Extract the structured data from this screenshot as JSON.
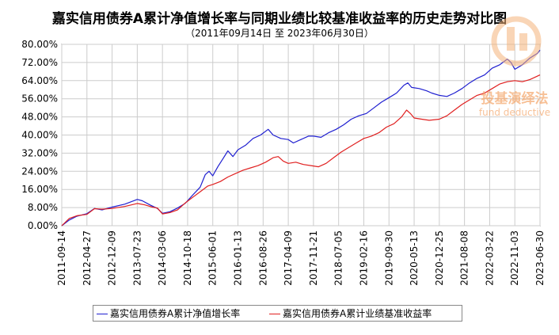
{
  "title": "嘉实信用债券A累计净值增长率与同期业绩比较基准收益率的历史走势对比图",
  "subtitle": "（2011年09月14日 至 2023年06月30日）",
  "watermark": {
    "cn": "投基演绎法",
    "en": "fund deductive"
  },
  "chart_data": {
    "type": "line",
    "x_ticks": [
      "2011-09-14",
      "2012-04-27",
      "2012-12-09",
      "2013-07-23",
      "2014-03-06",
      "2014-10-18",
      "2015-06-01",
      "2016-01-13",
      "2016-08-26",
      "2017-04-09",
      "2017-11-21",
      "2018-07-05",
      "2019-02-16",
      "2019-09-30",
      "2020-05-13",
      "2020-12-25",
      "2021-08-08",
      "2022-03-22",
      "2022-11-03",
      "2023-06-30"
    ],
    "y_ticks": [
      "0.00%",
      "8.00%",
      "16.00%",
      "24.00%",
      "32.00%",
      "40.00%",
      "48.00%",
      "56.00%",
      "64.00%",
      "72.00%",
      "80.00%"
    ],
    "ylim": [
      0,
      80
    ],
    "grid": true,
    "legend_position": "bottom",
    "series": [
      {
        "name": "嘉实信用债券A累计净值增长率",
        "color": "#1f1fd0",
        "points": [
          [
            0,
            0
          ],
          [
            0.3,
            2.5
          ],
          [
            0.6,
            4.2
          ],
          [
            1,
            5.3
          ],
          [
            1.3,
            7.6
          ],
          [
            1.6,
            7.0
          ],
          [
            2,
            8.2
          ],
          [
            2.5,
            9.5
          ],
          [
            3,
            11.6
          ],
          [
            3.2,
            11.0
          ],
          [
            3.5,
            9.2
          ],
          [
            3.8,
            7.6
          ],
          [
            4,
            5.5
          ],
          [
            4.3,
            6.2
          ],
          [
            4.6,
            7.8
          ],
          [
            4.9,
            9.8
          ],
          [
            5.2,
            13.5
          ],
          [
            5.5,
            17.0
          ],
          [
            5.7,
            22.5
          ],
          [
            5.85,
            24.0
          ],
          [
            6,
            22.0
          ],
          [
            6.2,
            26.0
          ],
          [
            6.4,
            29.5
          ],
          [
            6.6,
            33.0
          ],
          [
            6.8,
            30.5
          ],
          [
            7,
            33.5
          ],
          [
            7.3,
            35.5
          ],
          [
            7.6,
            38.5
          ],
          [
            7.9,
            40.0
          ],
          [
            8.2,
            42.5
          ],
          [
            8.4,
            40.0
          ],
          [
            8.7,
            38.5
          ],
          [
            9,
            38.0
          ],
          [
            9.2,
            36.5
          ],
          [
            9.5,
            38.0
          ],
          [
            9.8,
            39.5
          ],
          [
            10,
            39.5
          ],
          [
            10.3,
            39.0
          ],
          [
            10.6,
            41.0
          ],
          [
            10.9,
            42.5
          ],
          [
            11.2,
            44.5
          ],
          [
            11.5,
            47.0
          ],
          [
            11.8,
            48.5
          ],
          [
            12.1,
            49.5
          ],
          [
            12.4,
            52.0
          ],
          [
            12.7,
            54.5
          ],
          [
            13,
            56.5
          ],
          [
            13.3,
            58.5
          ],
          [
            13.6,
            62.0
          ],
          [
            13.75,
            63.0
          ],
          [
            13.9,
            61.0
          ],
          [
            14.2,
            60.5
          ],
          [
            14.5,
            59.5
          ],
          [
            14.7,
            58.5
          ],
          [
            15,
            57.5
          ],
          [
            15.3,
            57.0
          ],
          [
            15.6,
            58.5
          ],
          [
            15.9,
            60.5
          ],
          [
            16.2,
            63.0
          ],
          [
            16.5,
            65.0
          ],
          [
            16.8,
            66.5
          ],
          [
            17.1,
            69.5
          ],
          [
            17.4,
            71.0
          ],
          [
            17.7,
            73.5
          ],
          [
            17.85,
            72.0
          ],
          [
            18,
            69.0
          ],
          [
            18.3,
            71.0
          ],
          [
            18.6,
            74.0
          ],
          [
            18.9,
            76.0
          ],
          [
            19,
            77.5
          ]
        ]
      },
      {
        "name": "嘉实信用债券A累计业绩基准收益率",
        "color": "#e02020",
        "points": [
          [
            0,
            0
          ],
          [
            0.3,
            3.2
          ],
          [
            0.6,
            4.4
          ],
          [
            1,
            5.0
          ],
          [
            1.3,
            7.5
          ],
          [
            1.6,
            7.3
          ],
          [
            2,
            7.6
          ],
          [
            2.5,
            8.5
          ],
          [
            3,
            9.8
          ],
          [
            3.3,
            9.2
          ],
          [
            3.6,
            8.2
          ],
          [
            3.8,
            7.8
          ],
          [
            4,
            5.2
          ],
          [
            4.3,
            5.8
          ],
          [
            4.6,
            7.0
          ],
          [
            4.9,
            10.0
          ],
          [
            5.2,
            12.5
          ],
          [
            5.5,
            15.0
          ],
          [
            5.8,
            17.5
          ],
          [
            6,
            18.2
          ],
          [
            6.3,
            19.5
          ],
          [
            6.6,
            21.5
          ],
          [
            6.9,
            23.0
          ],
          [
            7.2,
            24.5
          ],
          [
            7.5,
            25.5
          ],
          [
            7.8,
            26.5
          ],
          [
            8.1,
            28.0
          ],
          [
            8.4,
            30.0
          ],
          [
            8.6,
            30.5
          ],
          [
            8.8,
            28.5
          ],
          [
            9,
            27.5
          ],
          [
            9.3,
            28.0
          ],
          [
            9.6,
            27.0
          ],
          [
            9.9,
            26.5
          ],
          [
            10.2,
            26.0
          ],
          [
            10.5,
            27.5
          ],
          [
            10.8,
            30.0
          ],
          [
            11.1,
            32.5
          ],
          [
            11.4,
            34.5
          ],
          [
            11.7,
            36.5
          ],
          [
            12,
            38.5
          ],
          [
            12.3,
            39.5
          ],
          [
            12.6,
            41.0
          ],
          [
            12.9,
            43.5
          ],
          [
            13.2,
            45.0
          ],
          [
            13.5,
            48.0
          ],
          [
            13.7,
            51.0
          ],
          [
            13.85,
            49.5
          ],
          [
            14,
            47.5
          ],
          [
            14.3,
            47.0
          ],
          [
            14.6,
            46.5
          ],
          [
            15,
            47.0
          ],
          [
            15.3,
            48.5
          ],
          [
            15.6,
            51.0
          ],
          [
            15.9,
            53.5
          ],
          [
            16.2,
            55.5
          ],
          [
            16.5,
            57.5
          ],
          [
            16.8,
            58.5
          ],
          [
            17.1,
            60.5
          ],
          [
            17.4,
            62.5
          ],
          [
            17.7,
            63.5
          ],
          [
            18,
            64.0
          ],
          [
            18.3,
            63.5
          ],
          [
            18.6,
            64.5
          ],
          [
            18.9,
            66.0
          ],
          [
            19,
            66.5
          ]
        ]
      }
    ]
  }
}
